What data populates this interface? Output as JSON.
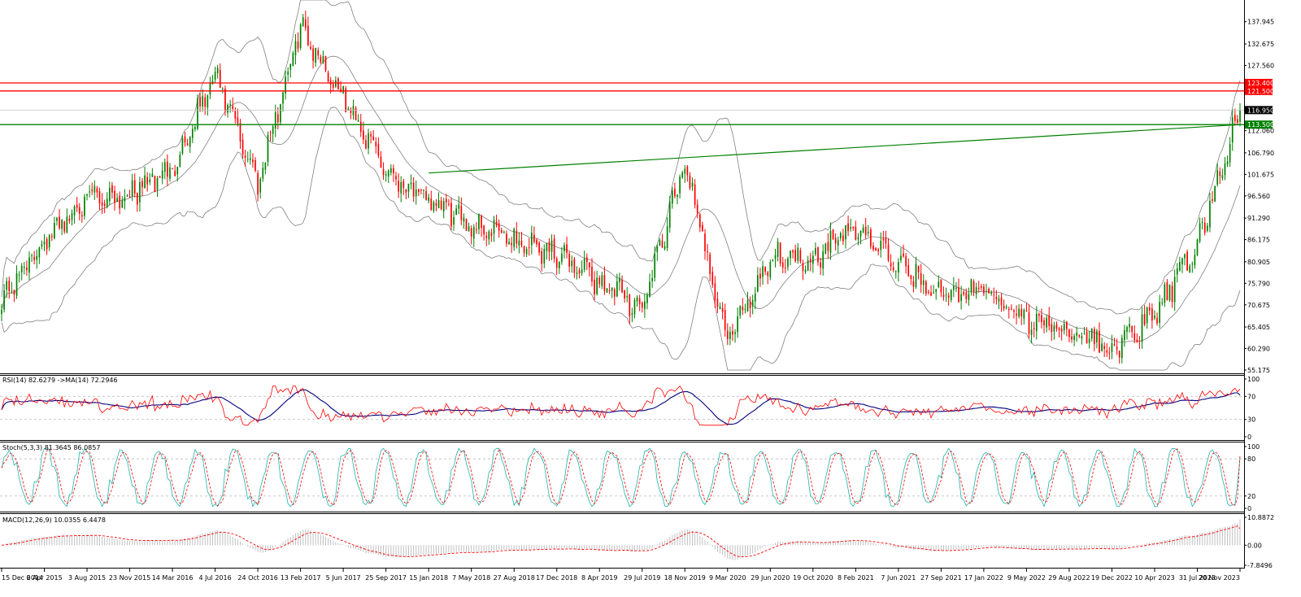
{
  "chart_data": [
    {
      "id": "price",
      "type": "candlestick",
      "timeframe": "weekly",
      "y_axis_ticks": [
        "137.945",
        "132.675",
        "127.560",
        "112.060",
        "106.790",
        "101.675",
        "96.560",
        "91.290",
        "86.175",
        "80.905",
        "75.790",
        "70.675",
        "65.405",
        "60.290",
        "55.175"
      ],
      "ylim": [
        55.175,
        140.4
      ],
      "x_axis_ticks": [
        "15 Dec 2014",
        "6 Apr 2015",
        "3 Aug 2015",
        "23 Nov 2015",
        "14 Mar 2016",
        "4 Jul 2016",
        "24 Oct 2016",
        "13 Feb 2017",
        "5 Jun 2017",
        "25 Sep 2017",
        "15 Jan 2018",
        "7 May 2018",
        "27 Aug 2018",
        "17 Dec 2018",
        "8 Apr 2019",
        "29 Jul 2019",
        "18 Nov 2019",
        "9 Mar 2020",
        "29 Jun 2020",
        "19 Oct 2020",
        "8 Feb 2021",
        "7 Jun 2021",
        "27 Sep 2021",
        "17 Jan 2022",
        "9 May 2022",
        "29 Aug 2022",
        "19 Dec 2022",
        "10 Apr 2023",
        "31 Jul 2023",
        "20 Nov 2023"
      ],
      "anchor_closes": [
        {
          "x": "15 Dec 2014",
          "close": 72
        },
        {
          "x": "6 Apr 2015",
          "close": 86
        },
        {
          "x": "3 Aug 2015",
          "close": 96
        },
        {
          "x": "23 Nov 2015",
          "close": 97
        },
        {
          "x": "14 Mar 2016",
          "close": 103
        },
        {
          "x": "4 Jul 2016",
          "close": 125
        },
        {
          "x": "24 Oct 2016",
          "close": 100
        },
        {
          "x": "13 Feb 2017",
          "close": 137
        },
        {
          "x": "5 Jun 2017",
          "close": 120
        },
        {
          "x": "25 Sep 2017",
          "close": 103
        },
        {
          "x": "15 Jan 2018",
          "close": 95
        },
        {
          "x": "7 May 2018",
          "close": 90
        },
        {
          "x": "27 Aug 2018",
          "close": 86
        },
        {
          "x": "17 Dec 2018",
          "close": 83
        },
        {
          "x": "8 Apr 2019",
          "close": 76
        },
        {
          "x": "29 Jul 2019",
          "close": 70
        },
        {
          "x": "18 Nov 2019",
          "close": 104
        },
        {
          "x": "9 Mar 2020",
          "close": 62
        },
        {
          "x": "29 Jun 2020",
          "close": 82
        },
        {
          "x": "19 Oct 2020",
          "close": 82
        },
        {
          "x": "8 Feb 2021",
          "close": 89
        },
        {
          "x": "7 Jun 2021",
          "close": 80
        },
        {
          "x": "27 Sep 2021",
          "close": 73
        },
        {
          "x": "17 Jan 2022",
          "close": 74
        },
        {
          "x": "9 May 2022",
          "close": 67
        },
        {
          "x": "29 Aug 2022",
          "close": 65
        },
        {
          "x": "19 Dec 2022",
          "close": 60
        },
        {
          "x": "10 Apr 2023",
          "close": 68
        },
        {
          "x": "31 Jul 2023",
          "close": 85
        },
        {
          "x": "20 Nov 2023",
          "close": 117
        }
      ],
      "horizontal_lines": [
        {
          "value": 123.4,
          "label": "123.400",
          "color": "#ff0000"
        },
        {
          "value": 121.5,
          "label": "121.500",
          "color": "#ff0000"
        },
        {
          "value": 113.5,
          "label": "113.500",
          "color": "#008000"
        }
      ],
      "current_price": {
        "value": 116.95,
        "label": "116.950",
        "color": "#000000"
      },
      "trendline": {
        "from": {
          "x": "15 Jan 2018",
          "y": 102
        },
        "to": {
          "x": "20 Nov 2023",
          "y": 113.5
        },
        "color": "#008000"
      },
      "bollinger_bands": true,
      "colors": {
        "bull": "#008000",
        "bear": "#ff0000",
        "band": "#808080"
      }
    },
    {
      "id": "rsi",
      "type": "line",
      "label": "RSI(14) 82.6279 ->MA(14) 72.2946",
      "y_axis_ticks": [
        "100",
        "70",
        "30",
        "0"
      ],
      "ylim": [
        0,
        100
      ],
      "levels": [
        70,
        30
      ],
      "series": [
        {
          "name": "RSI(14)",
          "value": 82.6279,
          "color": "#ff0000"
        },
        {
          "name": "MA(14)",
          "value": 72.2946,
          "color": "#000080"
        }
      ]
    },
    {
      "id": "stoch",
      "type": "line",
      "label": "Stoch(5,3,3) 81.3645 86.0857",
      "y_axis_ticks": [
        "100",
        "80",
        "20",
        "0"
      ],
      "ylim": [
        0,
        100
      ],
      "levels": [
        80,
        20
      ],
      "series": [
        {
          "name": "%K",
          "value": 81.3645,
          "color": "#20b2aa"
        },
        {
          "name": "%D",
          "value": 86.0857,
          "color": "#ff0000"
        }
      ]
    },
    {
      "id": "macd",
      "type": "bar",
      "label": "MACD(12,26,9) 10.0355 6.4478",
      "y_axis_ticks": [
        "10.8872",
        "0.00",
        "-7.8496"
      ],
      "ylim": [
        -7.8496,
        10.8872
      ],
      "series": [
        {
          "name": "MACD",
          "value": 10.0355,
          "color": "#c0c0c0"
        },
        {
          "name": "Signal",
          "value": 6.4478,
          "color": "#ff0000"
        }
      ]
    }
  ]
}
